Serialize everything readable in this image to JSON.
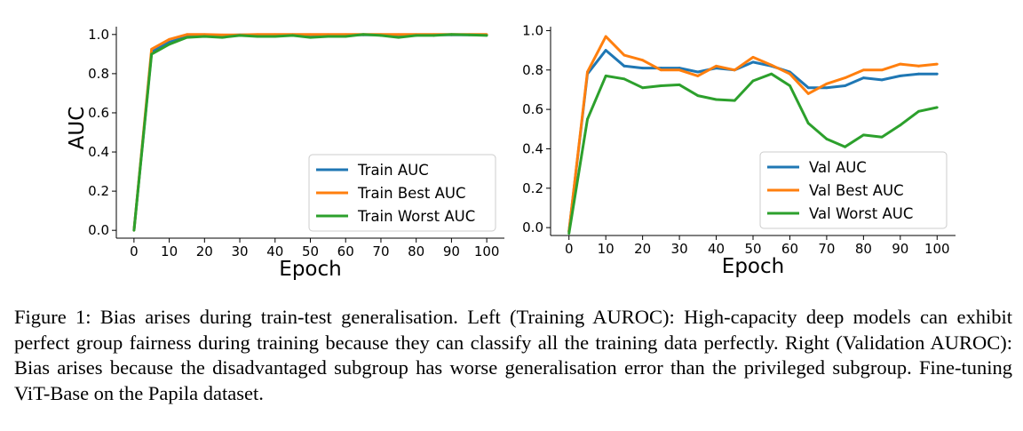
{
  "chart_data": [
    {
      "type": "line",
      "name": "left",
      "xlabel": "Epoch",
      "ylabel": "AUC",
      "xlim": [
        -5,
        105
      ],
      "ylim": [
        -0.04,
        1.04
      ],
      "xticks": [
        0,
        10,
        20,
        30,
        40,
        50,
        60,
        70,
        80,
        90,
        100
      ],
      "yticks": [
        0.0,
        0.2,
        0.4,
        0.6,
        0.8,
        1.0
      ],
      "ytick_labels": [
        "0.0",
        "0.2",
        "0.4",
        "0.6",
        "0.8",
        "1.0"
      ],
      "legend_position": "lower-right",
      "x": [
        0,
        5,
        10,
        15,
        20,
        25,
        30,
        35,
        40,
        45,
        50,
        55,
        60,
        65,
        70,
        75,
        80,
        85,
        90,
        95,
        100
      ],
      "series": [
        {
          "name": "Train AUC",
          "color": "#1f77b4",
          "values": [
            0.0,
            0.91,
            0.96,
            0.99,
            0.995,
            0.995,
            0.998,
            0.998,
            0.998,
            0.998,
            0.998,
            0.998,
            0.998,
            0.998,
            0.998,
            0.998,
            0.998,
            0.998,
            0.998,
            0.998,
            0.998
          ]
        },
        {
          "name": "Train Best AUC",
          "color": "#ff7f0e",
          "values": [
            0.0,
            0.925,
            0.975,
            1.0,
            1.0,
            0.998,
            0.998,
            1.0,
            1.0,
            1.0,
            1.0,
            1.0,
            1.0,
            1.0,
            1.0,
            1.0,
            1.0,
            1.0,
            1.0,
            1.0,
            1.0
          ]
        },
        {
          "name": "Train Worst AUC",
          "color": "#2ca02c",
          "values": [
            0.0,
            0.9,
            0.95,
            0.985,
            0.99,
            0.985,
            0.995,
            0.99,
            0.99,
            0.995,
            0.985,
            0.99,
            0.99,
            1.0,
            0.995,
            0.985,
            0.995,
            0.995,
            1.0,
            0.998,
            0.995
          ]
        }
      ]
    },
    {
      "type": "line",
      "name": "right",
      "xlabel": "Epoch",
      "ylabel": "",
      "xlim": [
        -5,
        105
      ],
      "ylim": [
        -0.04,
        1.02
      ],
      "xticks": [
        0,
        10,
        20,
        30,
        40,
        50,
        60,
        70,
        80,
        90,
        100
      ],
      "yticks": [
        0.0,
        0.2,
        0.4,
        0.6,
        0.8,
        1.0
      ],
      "ytick_labels": [
        "0.0",
        "0.2",
        "0.4",
        "0.6",
        "0.8",
        "1.0"
      ],
      "legend_position": "lower-right",
      "x": [
        0,
        5,
        10,
        15,
        20,
        25,
        30,
        35,
        40,
        45,
        50,
        55,
        60,
        65,
        70,
        75,
        80,
        85,
        90,
        95,
        100
      ],
      "series": [
        {
          "name": "Val AUC",
          "color": "#1f77b4",
          "values": [
            -0.02,
            0.78,
            0.9,
            0.82,
            0.81,
            0.81,
            0.81,
            0.79,
            0.81,
            0.8,
            0.84,
            0.82,
            0.79,
            0.71,
            0.71,
            0.72,
            0.76,
            0.75,
            0.77,
            0.78,
            0.78
          ]
        },
        {
          "name": "Val Best AUC",
          "color": "#ff7f0e",
          "values": [
            -0.02,
            0.79,
            0.97,
            0.875,
            0.85,
            0.8,
            0.8,
            0.77,
            0.82,
            0.8,
            0.865,
            0.825,
            0.78,
            0.68,
            0.73,
            0.76,
            0.8,
            0.8,
            0.83,
            0.82,
            0.83
          ]
        },
        {
          "name": "Val Worst AUC",
          "color": "#2ca02c",
          "values": [
            -0.03,
            0.55,
            0.77,
            0.755,
            0.71,
            0.72,
            0.725,
            0.67,
            0.65,
            0.645,
            0.745,
            0.78,
            0.72,
            0.53,
            0.45,
            0.41,
            0.47,
            0.46,
            0.52,
            0.59,
            0.61
          ]
        }
      ]
    }
  ],
  "caption": "Figure 1: Bias arises during train-test generalisation. Left (Training AUROC): High-capacity deep models can exhibit perfect group fairness during training because they can classify all the training data perfectly. Right (Validation AUROC): Bias arises because the disadvantaged subgroup has worse generalisation error than the privileged subgroup. Fine-tuning ViT-Base on the Papila dataset."
}
